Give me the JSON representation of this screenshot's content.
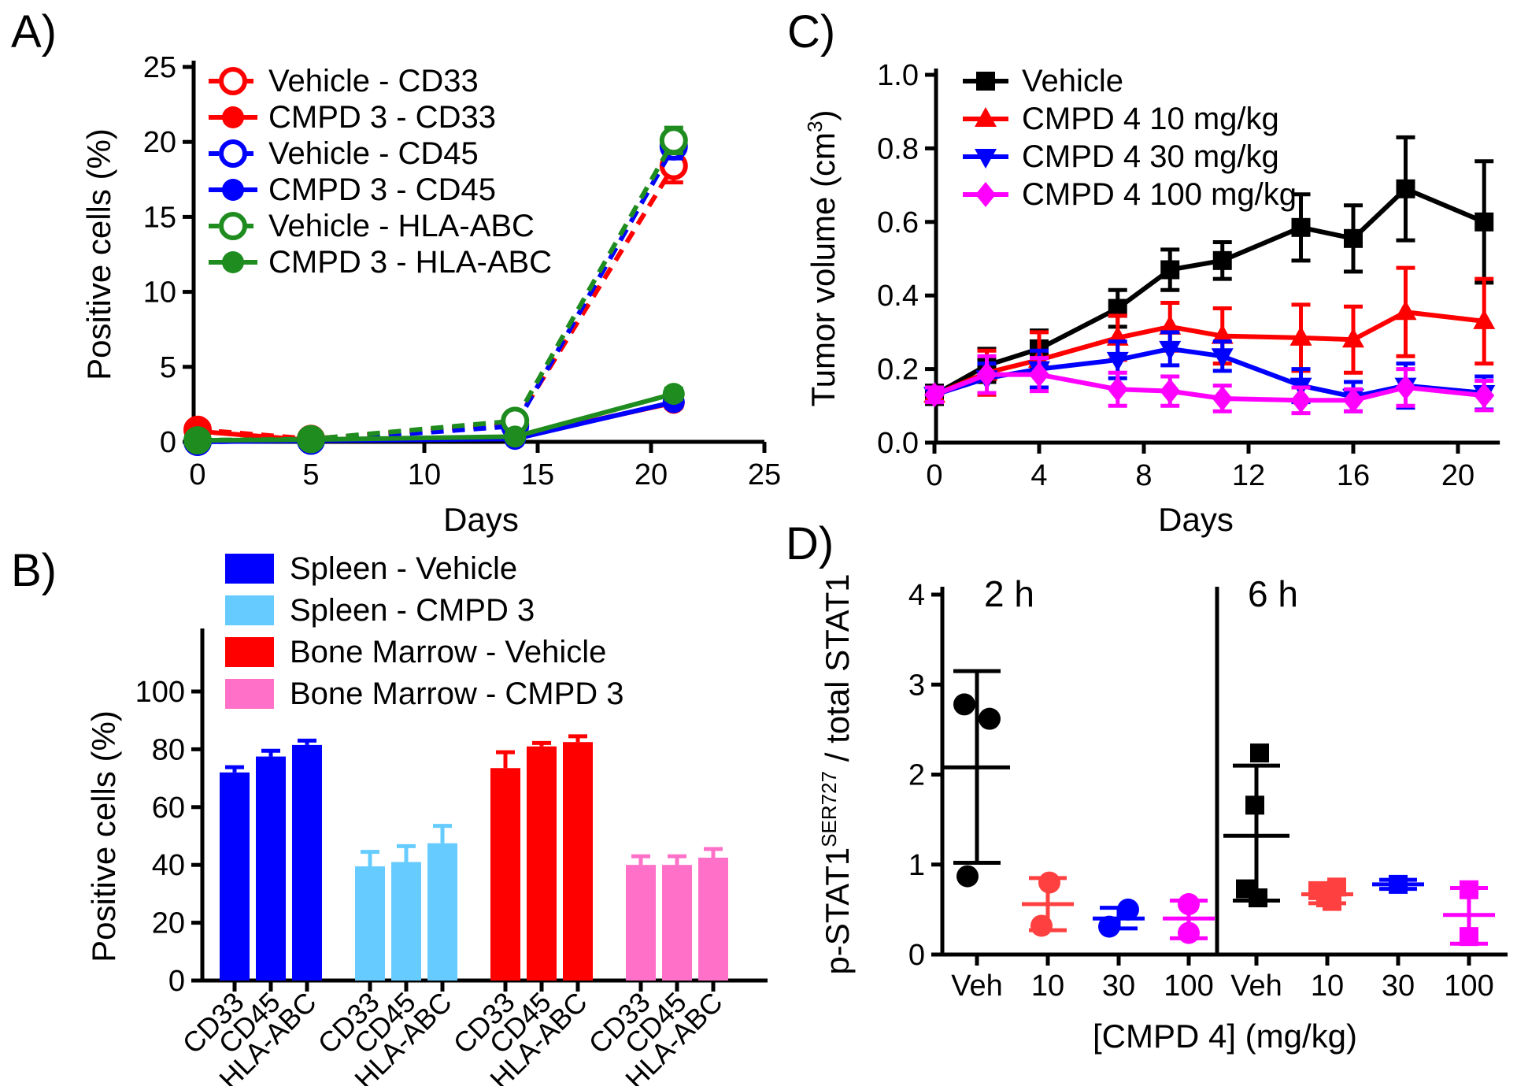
{
  "chart_data": [
    {
      "panel_label": "A)",
      "type": "line",
      "xlabel": "Days",
      "ylabel": "Positive cells (%)",
      "xlim": [
        0,
        25
      ],
      "ylim": [
        0,
        25
      ],
      "xticks": [
        0,
        5,
        10,
        15,
        20,
        25
      ],
      "xtick_labels": [
        "0",
        "5",
        "10",
        "15",
        "20",
        "25"
      ],
      "yticks": [
        0,
        5,
        10,
        15,
        20,
        25
      ],
      "ytick_labels": [
        "0",
        "5",
        "10",
        "15",
        "20",
        "25"
      ],
      "legend_position": "top-left-inside",
      "x": [
        0,
        5,
        14,
        21
      ],
      "series": [
        {
          "name": "Vehicle - CD33",
          "color": "#FF0000",
          "marker": "circle-open",
          "line": "dashed",
          "values": [
            0.8,
            0.2,
            1.2,
            18.4
          ],
          "errors": [
            0,
            0,
            0,
            1.1
          ]
        },
        {
          "name": "CMPD 3 - CD33",
          "color": "#FF0000",
          "marker": "circle",
          "line": "solid",
          "values": [
            0.7,
            0.1,
            0.3,
            2.6
          ],
          "errors": [
            0,
            0,
            0,
            0.3
          ]
        },
        {
          "name": "Vehicle - CD45",
          "color": "#0000FF",
          "marker": "circle-open",
          "line": "dashed",
          "values": [
            0,
            0.08,
            1.05,
            19.7
          ],
          "errors": [
            0,
            0,
            0,
            0.8
          ]
        },
        {
          "name": "CMPD 3 - CD45",
          "color": "#0000FF",
          "marker": "circle",
          "line": "solid",
          "values": [
            0,
            0.08,
            0.2,
            2.65
          ],
          "errors": [
            0,
            0,
            0,
            0.3
          ]
        },
        {
          "name": "Vehicle - HLA-ABC",
          "color": "#1E8C1E",
          "marker": "circle-open",
          "line": "dashed",
          "values": [
            0.1,
            0.18,
            1.4,
            20.1
          ],
          "errors": [
            0,
            0,
            0,
            0.85
          ]
        },
        {
          "name": "CMPD 3 - HLA-ABC",
          "color": "#1E8C1E",
          "marker": "circle",
          "line": "solid",
          "values": [
            0.1,
            0.15,
            0.35,
            3.2
          ],
          "errors": [
            0,
            0,
            0,
            0.35
          ]
        }
      ]
    },
    {
      "panel_label": "B)",
      "type": "bar",
      "ylabel": "Positive cells (%)",
      "ylim": [
        0,
        115
      ],
      "yticks": [
        0,
        20,
        40,
        60,
        80,
        100
      ],
      "ytick_labels": [
        "0",
        "20",
        "40",
        "60",
        "80",
        "100"
      ],
      "legend_position": "top",
      "categories": [
        "CD33",
        "CD45",
        "HLA-ABC"
      ],
      "series": [
        {
          "name": "Spleen - Vehicle",
          "color": "#0000FF",
          "values": [
            72,
            77.5,
            81.5
          ],
          "errors": [
            1.8,
            2,
            1.5
          ]
        },
        {
          "name": "Spleen - CMPD 3",
          "color": "#66CCFF",
          "values": [
            39.5,
            41,
            47.5
          ],
          "errors": [
            5,
            5.5,
            6
          ]
        },
        {
          "name": "Bone Marrow - Vehicle",
          "color": "#FF0000",
          "values": [
            73.5,
            81,
            82.5
          ],
          "errors": [
            5.5,
            1.2,
            2
          ]
        },
        {
          "name": "Bone Marrow - CMPD 3",
          "color": "#FF70C8",
          "values": [
            40,
            40,
            42.5
          ],
          "errors": [
            3,
            3,
            3
          ]
        }
      ]
    },
    {
      "panel_label": "C)",
      "type": "line",
      "xlabel": "Days",
      "ylabel_parts": [
        {
          "t": "Tumor volume (cm"
        },
        {
          "t": "3",
          "sup": true
        },
        {
          "t": ")"
        }
      ],
      "xlim": [
        0,
        21.6
      ],
      "ylim": [
        0,
        1.0
      ],
      "xticks": [
        0,
        4,
        8,
        12,
        16,
        20
      ],
      "xtick_labels": [
        "0",
        "4",
        "8",
        "12",
        "16",
        "20"
      ],
      "yticks": [
        0,
        0.2,
        0.4,
        0.6,
        0.8,
        1.0
      ],
      "ytick_labels": [
        "0.0",
        "0.2",
        "0.4",
        "0.6",
        "0.8",
        "1.0"
      ],
      "legend_position": "top-left-inside",
      "x": [
        0,
        2,
        4,
        7,
        9,
        11,
        14,
        16,
        18,
        21
      ],
      "series": [
        {
          "name": "Vehicle",
          "color": "#000000",
          "marker": "square",
          "line": "solid",
          "values": [
            0.13,
            0.21,
            0.255,
            0.365,
            0.47,
            0.495,
            0.585,
            0.555,
            0.69,
            0.6
          ],
          "errors": [
            0.025,
            0.045,
            0.05,
            0.05,
            0.055,
            0.05,
            0.09,
            0.09,
            0.14,
            0.165
          ]
        },
        {
          "name": "CMPD 4 10 mg/kg",
          "color": "#FF0000",
          "marker": "triangle-up",
          "line": "solid",
          "values": [
            0.13,
            0.19,
            0.225,
            0.285,
            0.315,
            0.29,
            0.285,
            0.28,
            0.355,
            0.33
          ],
          "errors": [
            0.02,
            0.06,
            0.075,
            0.06,
            0.065,
            0.075,
            0.09,
            0.09,
            0.12,
            0.115
          ]
        },
        {
          "name": "CMPD 4 30 mg/kg",
          "color": "#0000FF",
          "marker": "triangle-down",
          "line": "solid",
          "values": [
            0.13,
            0.175,
            0.2,
            0.225,
            0.255,
            0.235,
            0.155,
            0.125,
            0.155,
            0.135
          ],
          "errors": [
            0.02,
            0.04,
            0.05,
            0.05,
            0.045,
            0.04,
            0.045,
            0.04,
            0.06,
            0.045
          ]
        },
        {
          "name": "CMPD 4 100 mg/kg",
          "color": "#FF00FF",
          "marker": "diamond",
          "line": "solid",
          "values": [
            0.13,
            0.185,
            0.185,
            0.145,
            0.14,
            0.12,
            0.115,
            0.115,
            0.15,
            0.128
          ],
          "errors": [
            0.02,
            0.05,
            0.045,
            0.045,
            0.04,
            0.035,
            0.035,
            0.03,
            0.05,
            0.04
          ]
        }
      ]
    },
    {
      "panel_label": "D)",
      "type": "scatter",
      "xlabel": "[CMPD 4] (mg/kg)",
      "ylabel_parts": [
        {
          "t": "p-STAT1"
        },
        {
          "t": "SER727",
          "sup": true
        },
        {
          "t": " / total STAT1"
        }
      ],
      "ylim": [
        0,
        4
      ],
      "yticks": [
        0,
        1,
        2,
        3,
        4
      ],
      "ytick_labels": [
        "0",
        "1",
        "2",
        "3",
        "4"
      ],
      "sections": [
        {
          "label": "2 h",
          "marker": "circle",
          "groups": [
            {
              "tick": "Veh",
              "color": "#000000",
              "points": [
                [
                  2.78,
                  -16
                ],
                [
                  2.62,
                  16
                ],
                [
                  0.87,
                  -12
                ]
              ],
              "mean": 2.08,
              "err_lo": 1.02,
              "err_hi": 3.15
            },
            {
              "tick": "10",
              "color": "#FF4040",
              "points": [
                [
                  0.8,
                  2
                ],
                [
                  0.32,
                  -8
                ]
              ],
              "mean": 0.56,
              "err_lo": 0.27,
              "err_hi": 0.85
            },
            {
              "tick": "30",
              "color": "#0000FF",
              "points": [
                [
                  0.5,
                  12
                ],
                [
                  0.31,
                  -12
                ]
              ],
              "mean": 0.4,
              "err_lo": 0.29,
              "err_hi": 0.52
            },
            {
              "tick": "100",
              "color": "#FF00FF",
              "points": [
                [
                  0.56,
                  0
                ],
                [
                  0.24,
                  0
                ]
              ],
              "mean": 0.4,
              "err_lo": 0.18,
              "err_hi": 0.6
            }
          ]
        },
        {
          "label": "6 h",
          "marker": "square",
          "groups": [
            {
              "tick": "Veh",
              "color": "#000000",
              "points": [
                [
                  2.24,
                  4
                ],
                [
                  1.66,
                  -2
                ],
                [
                  0.73,
                  -14
                ],
                [
                  0.63,
                  2
                ]
              ],
              "mean": 1.32,
              "err_lo": 0.6,
              "err_hi": 2.1
            },
            {
              "tick": "10",
              "color": "#FF4040",
              "points": [
                [
                  0.75,
                  12
                ],
                [
                  0.71,
                  -12
                ],
                [
                  0.63,
                  -2
                ],
                [
                  0.59,
                  6
                ]
              ],
              "mean": 0.67,
              "err_lo": 0.57,
              "err_hi": 0.78
            },
            {
              "tick": "30",
              "color": "#0000FF",
              "points": [
                [
                  0.78,
                  0
                ]
              ],
              "mean": 0.78,
              "err_lo": 0.73,
              "err_hi": 0.83
            },
            {
              "tick": "100",
              "color": "#FF00FF",
              "points": [
                [
                  0.72,
                  0
                ],
                [
                  0.2,
                  0
                ]
              ],
              "mean": 0.44,
              "err_lo": 0.12,
              "err_hi": 0.74
            }
          ]
        }
      ]
    }
  ]
}
